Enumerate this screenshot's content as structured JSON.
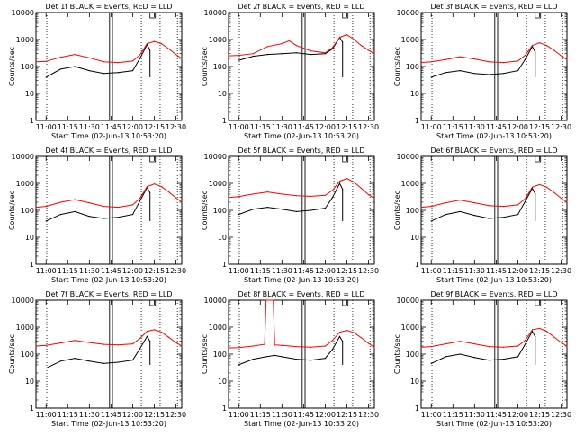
{
  "colors": {
    "events": "#000000",
    "lld": "#ff0000",
    "axis": "#000000",
    "background": "#ffffff"
  },
  "chart_data": [
    {
      "type": "line",
      "title": "Det 1f BLACK = Events, RED = LLD",
      "xlabel": "Start Time (02-Jun-13 10:53:20)",
      "ylabel": "Counts/sec",
      "yscale": "log",
      "ylim": [
        1,
        10000
      ],
      "xlim": [
        "10:53",
        "12:34"
      ],
      "x_ticks": [
        "11:00",
        "11:15",
        "11:30",
        "11:45",
        "12:00",
        "12:15",
        "12:30"
      ],
      "y_ticks": [
        "1",
        "10",
        "100",
        "1000",
        "10000"
      ],
      "series": [
        {
          "name": "Events",
          "x": [
            "11:00",
            "11:10",
            "11:20",
            "11:30",
            "11:40",
            "11:50",
            "12:00",
            "12:05",
            "12:10",
            "12:12"
          ],
          "values": [
            40,
            80,
            100,
            70,
            55,
            60,
            70,
            200,
            650,
            400
          ]
        },
        {
          "name": "LLD",
          "x": [
            "10:53",
            "11:00",
            "11:10",
            "11:20",
            "11:30",
            "11:40",
            "11:50",
            "12:00",
            "12:05",
            "12:10",
            "12:15",
            "12:20",
            "12:25",
            "12:30",
            "12:34"
          ],
          "values": [
            150,
            155,
            220,
            280,
            210,
            150,
            140,
            160,
            270,
            700,
            850,
            700,
            450,
            280,
            200
          ]
        }
      ]
    },
    {
      "type": "line",
      "title": "Det 2f BLACK = Events, RED = LLD",
      "xlabel": "Start Time (02-Jun-13 10:53:20)",
      "ylabel": "Counts/sec",
      "yscale": "log",
      "ylim": [
        1,
        10000
      ],
      "xlim": [
        "10:53",
        "12:34"
      ],
      "x_ticks": [
        "11:00",
        "11:15",
        "11:30",
        "11:45",
        "12:00",
        "12:15",
        "12:30"
      ],
      "y_ticks": [
        "1",
        "10",
        "100",
        "1000",
        "10000"
      ],
      "series": [
        {
          "name": "Events",
          "x": [
            "11:00",
            "11:10",
            "11:20",
            "11:30",
            "11:40",
            "11:50",
            "12:00",
            "12:05",
            "12:10",
            "12:12"
          ],
          "values": [
            170,
            240,
            280,
            300,
            320,
            280,
            300,
            450,
            1200,
            800
          ]
        },
        {
          "name": "LLD",
          "x": [
            "10:53",
            "11:00",
            "11:10",
            "11:20",
            "11:30",
            "11:35",
            "11:40",
            "11:50",
            "12:00",
            "12:05",
            "12:10",
            "12:15",
            "12:20",
            "12:25",
            "12:30",
            "12:34"
          ],
          "values": [
            250,
            260,
            300,
            550,
            700,
            900,
            600,
            380,
            320,
            500,
            1200,
            1500,
            1000,
            600,
            400,
            300
          ]
        }
      ]
    },
    {
      "type": "line",
      "title": "Det 3f BLACK = Events, RED = LLD",
      "xlabel": "Start Time (02-Jun-13 10:53:20)",
      "ylabel": "Counts/sec",
      "yscale": "log",
      "ylim": [
        1,
        10000
      ],
      "xlim": [
        "10:53",
        "12:34"
      ],
      "x_ticks": [
        "11:00",
        "11:15",
        "11:30",
        "11:45",
        "12:00",
        "12:15",
        "12:30"
      ],
      "y_ticks": [
        "1",
        "10",
        "100",
        "1000",
        "10000"
      ],
      "series": [
        {
          "name": "Events",
          "x": [
            "11:00",
            "11:10",
            "11:20",
            "11:30",
            "11:40",
            "11:50",
            "12:00",
            "12:05",
            "12:10",
            "12:12"
          ],
          "values": [
            40,
            60,
            70,
            55,
            50,
            55,
            70,
            180,
            550,
            350
          ]
        },
        {
          "name": "LLD",
          "x": [
            "10:53",
            "11:00",
            "11:10",
            "11:20",
            "11:30",
            "11:40",
            "11:50",
            "12:00",
            "12:05",
            "12:10",
            "12:15",
            "12:20",
            "12:25",
            "12:30",
            "12:34"
          ],
          "values": [
            140,
            150,
            180,
            230,
            190,
            150,
            140,
            160,
            260,
            600,
            750,
            600,
            400,
            250,
            180
          ]
        }
      ]
    },
    {
      "type": "line",
      "title": "Det 4f BLACK = Events, RED = LLD",
      "xlabel": "Start Time (02-Jun-13 10:53:20)",
      "ylabel": "Counts/sec",
      "yscale": "log",
      "ylim": [
        1,
        10000
      ],
      "xlim": [
        "10:53",
        "12:34"
      ],
      "x_ticks": [
        "11:00",
        "11:15",
        "11:30",
        "11:45",
        "12:00",
        "12:15",
        "12:30"
      ],
      "y_ticks": [
        "1",
        "10",
        "100",
        "1000",
        "10000"
      ],
      "series": [
        {
          "name": "Events",
          "x": [
            "11:00",
            "11:10",
            "11:20",
            "11:30",
            "11:40",
            "11:50",
            "12:00",
            "12:05",
            "12:10",
            "12:12"
          ],
          "values": [
            40,
            70,
            90,
            60,
            50,
            55,
            70,
            220,
            700,
            450
          ]
        },
        {
          "name": "LLD",
          "x": [
            "10:53",
            "11:00",
            "11:10",
            "11:20",
            "11:30",
            "11:40",
            "11:50",
            "12:00",
            "12:05",
            "12:10",
            "12:15",
            "12:20",
            "12:25",
            "12:30",
            "12:34"
          ],
          "values": [
            130,
            140,
            200,
            250,
            190,
            140,
            130,
            160,
            280,
            750,
            950,
            750,
            480,
            290,
            200
          ]
        }
      ]
    },
    {
      "type": "line",
      "title": "Det 5f BLACK = Events, RED = LLD",
      "xlabel": "Start Time (02-Jun-13 10:53:20)",
      "ylabel": "Counts/sec",
      "yscale": "log",
      "ylim": [
        1,
        10000
      ],
      "xlim": [
        "10:53",
        "12:34"
      ],
      "x_ticks": [
        "11:00",
        "11:15",
        "11:30",
        "11:45",
        "12:00",
        "12:15",
        "12:30"
      ],
      "y_ticks": [
        "1",
        "10",
        "100",
        "1000",
        "10000"
      ],
      "series": [
        {
          "name": "Events",
          "x": [
            "11:00",
            "11:10",
            "11:20",
            "11:30",
            "11:40",
            "11:50",
            "12:00",
            "12:05",
            "12:10",
            "12:12"
          ],
          "values": [
            70,
            110,
            130,
            110,
            90,
            100,
            120,
            300,
            1000,
            600
          ]
        },
        {
          "name": "LLD",
          "x": [
            "10:53",
            "11:00",
            "11:10",
            "11:20",
            "11:30",
            "11:40",
            "11:50",
            "12:00",
            "12:05",
            "12:10",
            "12:15",
            "12:20",
            "12:25",
            "12:30",
            "12:34"
          ],
          "values": [
            300,
            320,
            400,
            480,
            400,
            350,
            330,
            360,
            550,
            1200,
            1500,
            1100,
            650,
            380,
            280
          ]
        }
      ]
    },
    {
      "type": "line",
      "title": "Det 6f BLACK = Events, RED = LLD",
      "xlabel": "Start Time (02-Jun-13 10:53:20)",
      "ylabel": "Counts/sec",
      "yscale": "log",
      "ylim": [
        1,
        10000
      ],
      "xlim": [
        "10:53",
        "12:34"
      ],
      "x_ticks": [
        "11:00",
        "11:15",
        "11:30",
        "11:45",
        "12:00",
        "12:15",
        "12:30"
      ],
      "y_ticks": [
        "1",
        "10",
        "100",
        "1000",
        "10000"
      ],
      "series": [
        {
          "name": "Events",
          "x": [
            "11:00",
            "11:10",
            "11:20",
            "11:30",
            "11:40",
            "11:50",
            "12:00",
            "12:05",
            "12:10",
            "12:12"
          ],
          "values": [
            40,
            70,
            90,
            65,
            50,
            55,
            70,
            210,
            650,
            420
          ]
        },
        {
          "name": "LLD",
          "x": [
            "10:53",
            "11:00",
            "11:10",
            "11:20",
            "11:30",
            "11:40",
            "11:50",
            "12:00",
            "12:05",
            "12:10",
            "12:15",
            "12:20",
            "12:25",
            "12:30",
            "12:34"
          ],
          "values": [
            130,
            140,
            190,
            240,
            190,
            150,
            140,
            160,
            270,
            720,
            900,
            720,
            460,
            280,
            200
          ]
        }
      ]
    },
    {
      "type": "line",
      "title": "Det 7f BLACK = Events, RED = LLD",
      "xlabel": "Start Time (02-Jun-13 10:53:20)",
      "ylabel": "Counts/sec",
      "yscale": "log",
      "ylim": [
        1,
        10000
      ],
      "xlim": [
        "10:53",
        "12:34"
      ],
      "x_ticks": [
        "11:00",
        "11:15",
        "11:30",
        "11:45",
        "12:00",
        "12:15",
        "12:30"
      ],
      "y_ticks": [
        "1",
        "10",
        "100",
        "1000",
        "10000"
      ],
      "series": [
        {
          "name": "Events",
          "x": [
            "11:00",
            "11:10",
            "11:20",
            "11:30",
            "11:40",
            "11:50",
            "12:00",
            "12:05",
            "12:10",
            "12:12"
          ],
          "values": [
            30,
            55,
            70,
            55,
            45,
            50,
            60,
            160,
            450,
            300
          ]
        },
        {
          "name": "LLD",
          "x": [
            "10:53",
            "11:00",
            "11:10",
            "11:20",
            "11:30",
            "11:40",
            "11:50",
            "12:00",
            "12:05",
            "12:10",
            "12:15",
            "12:20",
            "12:25",
            "12:30",
            "12:34"
          ],
          "values": [
            200,
            210,
            260,
            320,
            270,
            230,
            220,
            240,
            380,
            700,
            800,
            650,
            420,
            270,
            200
          ]
        }
      ]
    },
    {
      "type": "line",
      "title": "Det 8f BLACK = Events, RED = LLD",
      "xlabel": "Start Time (02-Jun-13 10:53:20)",
      "ylabel": "Counts/sec",
      "yscale": "log",
      "ylim": [
        1,
        10000
      ],
      "xlim": [
        "10:53",
        "12:34"
      ],
      "x_ticks": [
        "11:00",
        "11:15",
        "11:30",
        "11:45",
        "12:00",
        "12:15",
        "12:30"
      ],
      "y_ticks": [
        "1",
        "10",
        "100",
        "1000",
        "10000"
      ],
      "series": [
        {
          "name": "Events",
          "x": [
            "11:00",
            "11:10",
            "11:19",
            "11:25",
            "11:30",
            "11:40",
            "11:50",
            "12:00",
            "12:05",
            "12:10",
            "12:12"
          ],
          "values": [
            40,
            65,
            80,
            90,
            80,
            65,
            60,
            70,
            150,
            450,
            300
          ]
        },
        {
          "name": "LLD",
          "x": [
            "10:53",
            "11:00",
            "11:10",
            "11:18",
            "11:19",
            "11:20",
            "11:24",
            "11:25",
            "11:30",
            "11:40",
            "11:50",
            "12:00",
            "12:05",
            "12:10",
            "12:15",
            "12:20",
            "12:25",
            "12:30",
            "12:34"
          ],
          "values": [
            170,
            175,
            200,
            230,
            10000,
            10000,
            10000,
            220,
            210,
            190,
            180,
            200,
            320,
            650,
            750,
            620,
            400,
            250,
            180
          ]
        }
      ]
    },
    {
      "type": "line",
      "title": "Det 9f BLACK = Events, RED = LLD",
      "xlabel": "Start Time (02-Jun-13 10:53:20)",
      "ylabel": "Counts/sec",
      "yscale": "log",
      "ylim": [
        1,
        10000
      ],
      "xlim": [
        "10:53",
        "12:34"
      ],
      "x_ticks": [
        "11:00",
        "11:15",
        "11:30",
        "11:45",
        "12:00",
        "12:15",
        "12:30"
      ],
      "y_ticks": [
        "1",
        "10",
        "100",
        "1000",
        "10000"
      ],
      "series": [
        {
          "name": "Events",
          "x": [
            "11:00",
            "11:10",
            "11:20",
            "11:30",
            "11:40",
            "11:50",
            "12:00",
            "12:05",
            "12:10",
            "12:12"
          ],
          "values": [
            45,
            80,
            100,
            75,
            60,
            65,
            80,
            230,
            700,
            450
          ]
        },
        {
          "name": "LLD",
          "x": [
            "10:53",
            "11:00",
            "11:10",
            "11:20",
            "11:30",
            "11:40",
            "11:50",
            "12:00",
            "12:05",
            "12:10",
            "12:15",
            "12:20",
            "12:25",
            "12:30",
            "12:34"
          ],
          "values": [
            180,
            190,
            240,
            300,
            240,
            190,
            180,
            200,
            320,
            800,
            900,
            700,
            430,
            270,
            200
          ]
        }
      ]
    }
  ]
}
